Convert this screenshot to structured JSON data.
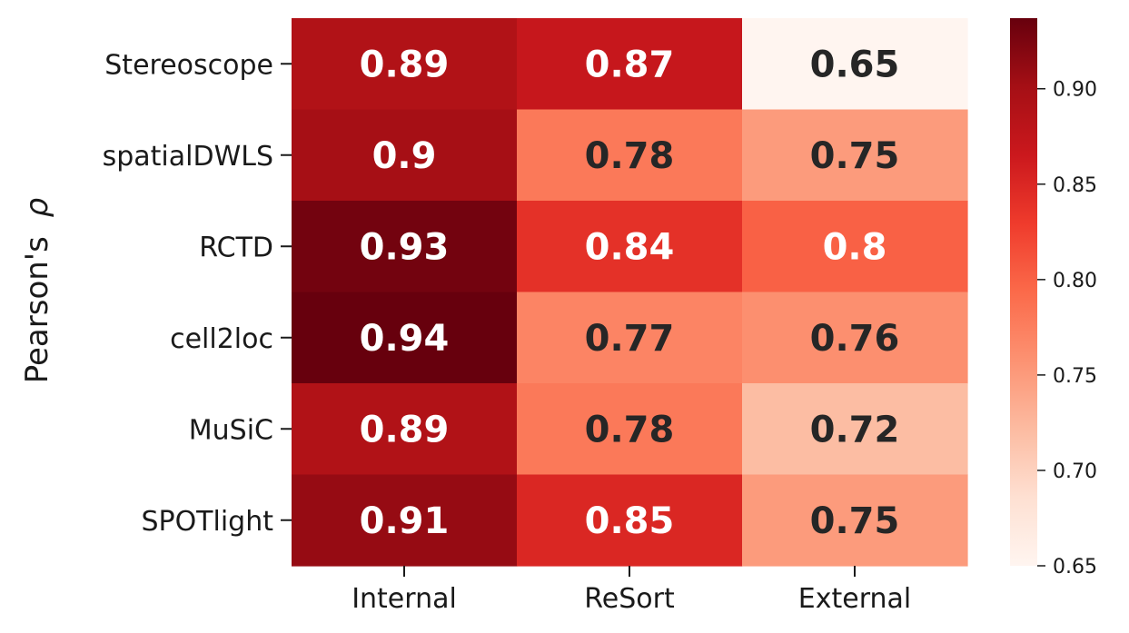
{
  "chart_data": {
    "type": "heatmap",
    "title": "",
    "xlabel": "",
    "ylabel": "Pearson's",
    "ylabel_symbol": "ρ",
    "columns": [
      "Internal",
      "ReSort",
      "External"
    ],
    "rows": [
      "Stereoscope",
      "spatialDWLS",
      "RCTD",
      "cell2loc",
      "MuSiC",
      "SPOTlight"
    ],
    "values": [
      [
        0.89,
        0.87,
        0.65
      ],
      [
        0.9,
        0.78,
        0.75
      ],
      [
        0.93,
        0.84,
        0.8
      ],
      [
        0.94,
        0.77,
        0.76
      ],
      [
        0.89,
        0.78,
        0.72
      ],
      [
        0.91,
        0.85,
        0.75
      ]
    ],
    "labels": [
      [
        "0.89",
        "0.87",
        "0.65"
      ],
      [
        "0.9",
        "0.78",
        "0.75"
      ],
      [
        "0.93",
        "0.84",
        "0.8"
      ],
      [
        "0.94",
        "0.77",
        "0.76"
      ],
      [
        "0.89",
        "0.78",
        "0.72"
      ],
      [
        "0.91",
        "0.85",
        "0.75"
      ]
    ],
    "colormap": "Reds",
    "color_range": [
      0.65,
      0.937
    ],
    "colorbar_ticks": [
      0.65,
      0.7,
      0.75,
      0.8,
      0.85,
      0.9
    ],
    "colorbar_tick_labels": [
      "0.65",
      "0.70",
      "0.75",
      "0.80",
      "0.85",
      "0.90"
    ],
    "light_text_color": "#ffffff",
    "dark_text_color": "#262626"
  }
}
